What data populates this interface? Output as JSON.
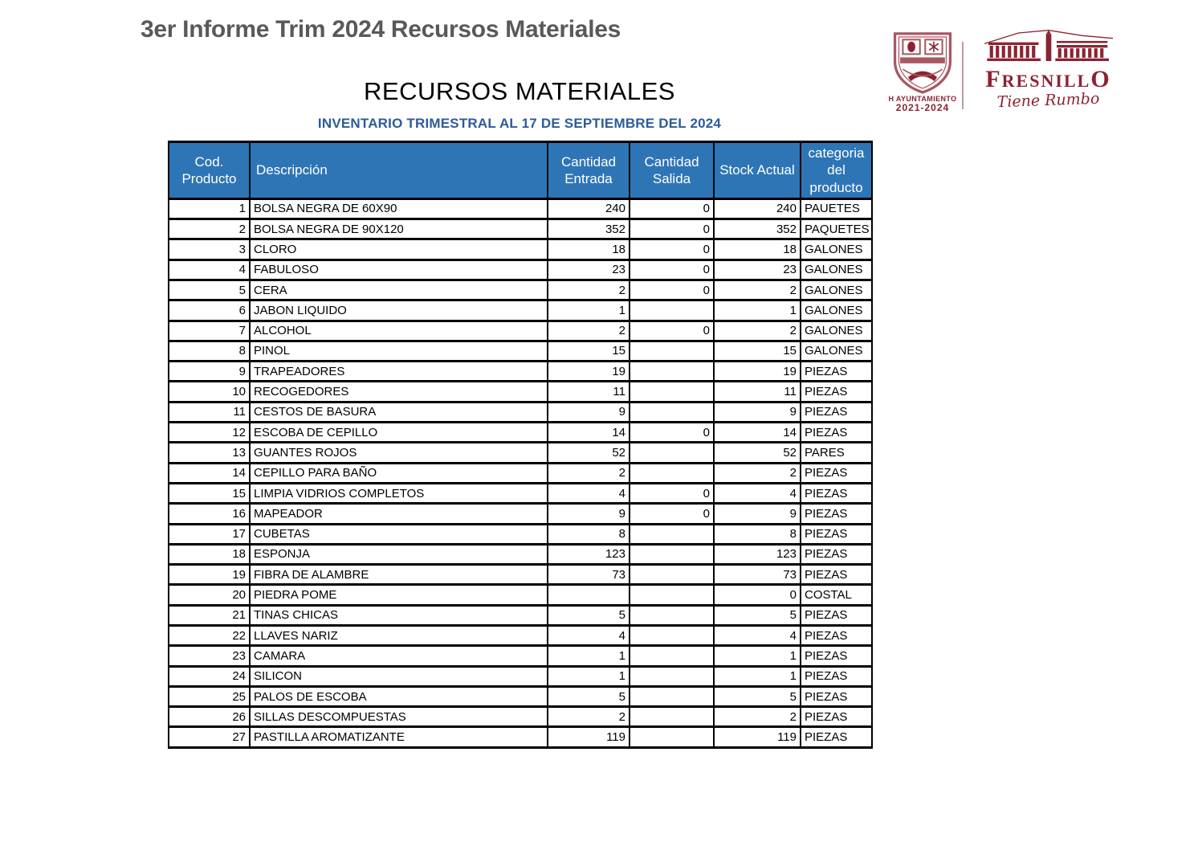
{
  "page": {
    "report_title": "3er Informe Trim 2024 Recursos Materiales",
    "section_heading": "RECURSOS MATERIALES",
    "subtitle": "INVENTARIO TRIMESTRAL AL 17 DE SEPTIEMBRE DEL 2024"
  },
  "logos": {
    "crest_caption_line1": "H AYUNTAMIENTO",
    "crest_caption_line2": "2021-2024",
    "brand_name": "FRESNILLO",
    "brand_tagline": "Tiene Rumbo",
    "brand_color": "#8C2332",
    "crest_color": "#A85763"
  },
  "colors": {
    "table_header_bg": "#2E75B6",
    "subtitle_blue": "#2E5B97",
    "title_gray": "#595959"
  },
  "table": {
    "columns": [
      {
        "label": "Cod.\nProducto"
      },
      {
        "label": "Descripción"
      },
      {
        "label": "Cantidad\nEntrada"
      },
      {
        "label": "Cantidad\nSalida"
      },
      {
        "label": "Stock Actual"
      },
      {
        "label": "categoria\ndel\nproducto"
      }
    ],
    "rows": [
      [
        "1",
        "BOLSA NEGRA DE 60X90",
        "240",
        "0",
        "240",
        "PAUETES"
      ],
      [
        "2",
        "BOLSA NEGRA DE 90X120",
        "352",
        "0",
        "352",
        "PAQUETES"
      ],
      [
        "3",
        "CLORO",
        "18",
        "0",
        "18",
        "GALONES"
      ],
      [
        "4",
        "FABULOSO",
        "23",
        "0",
        "23",
        "GALONES"
      ],
      [
        "5",
        "CERA",
        "2",
        "0",
        "2",
        "GALONES"
      ],
      [
        "6",
        "JABON LIQUIDO",
        "1",
        "",
        "1",
        "GALONES"
      ],
      [
        "7",
        "ALCOHOL",
        "2",
        "0",
        "2",
        "GALONES"
      ],
      [
        "8",
        "PINOL",
        "15",
        "",
        "15",
        "GALONES"
      ],
      [
        "9",
        "TRAPEADORES",
        "19",
        "",
        "19",
        "PIEZAS"
      ],
      [
        "10",
        "RECOGEDORES",
        "11",
        "",
        "11",
        "PIEZAS"
      ],
      [
        "11",
        "CESTOS DE BASURA",
        "9",
        "",
        "9",
        "PIEZAS"
      ],
      [
        "12",
        "ESCOBA DE CEPILLO",
        "14",
        "0",
        "14",
        "PIEZAS"
      ],
      [
        "13",
        "GUANTES ROJOS",
        "52",
        "",
        "52",
        "PARES"
      ],
      [
        "14",
        "CEPILLO PARA BAÑO",
        "2",
        "",
        "2",
        "PIEZAS"
      ],
      [
        "15",
        "LIMPIA VIDRIOS COMPLETOS",
        "4",
        "0",
        "4",
        "PIEZAS"
      ],
      [
        "16",
        "MAPEADOR",
        "9",
        "0",
        "9",
        "PIEZAS"
      ],
      [
        "17",
        "CUBETAS",
        "8",
        "",
        "8",
        "PIEZAS"
      ],
      [
        "18",
        "ESPONJA",
        "123",
        "",
        "123",
        "PIEZAS"
      ],
      [
        "19",
        "FIBRA DE ALAMBRE",
        "73",
        "",
        "73",
        "PIEZAS"
      ],
      [
        "20",
        "PIEDRA POME",
        "",
        "",
        "0",
        "COSTAL"
      ],
      [
        "21",
        "TINAS CHICAS",
        "5",
        "",
        "5",
        "PIEZAS"
      ],
      [
        "22",
        "LLAVES NARIZ",
        "4",
        "",
        "4",
        "PIEZAS"
      ],
      [
        "23",
        "CAMARA",
        "1",
        "",
        "1",
        "PIEZAS"
      ],
      [
        "24",
        "SILICON",
        "1",
        "",
        "1",
        "PIEZAS"
      ],
      [
        "25",
        "PALOS DE ESCOBA",
        "5",
        "",
        "5",
        "PIEZAS"
      ],
      [
        "26",
        "SILLAS DESCOMPUESTAS",
        "2",
        "",
        "2",
        "PIEZAS"
      ],
      [
        "27",
        "PASTILLA AROMATIZANTE",
        "119",
        "",
        "119",
        "PIEZAS"
      ]
    ]
  }
}
